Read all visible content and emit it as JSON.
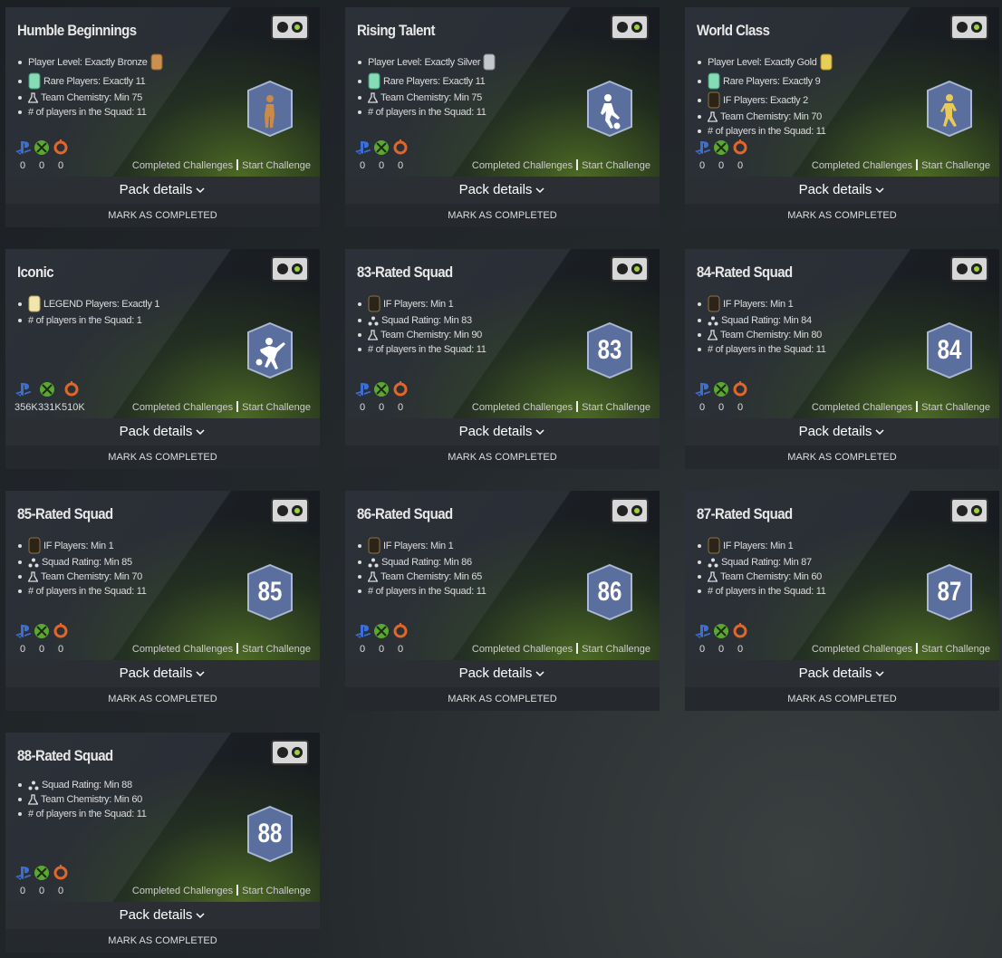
{
  "cards": [
    {
      "title": "Humble Beginnings",
      "requirements": [
        "Player Level: Exactly Bronze",
        "Rare Players: Exactly 11",
        "Team Chemistry: Min 75",
        "# of players in the Squad: 11"
      ],
      "counts": [
        0,
        0,
        0
      ]
    },
    {
      "title": "Rising Talent",
      "requirements": [
        "Player Level: Exactly Silver",
        "Rare Players: Exactly 11",
        "Team Chemistry: Min 75",
        "# of players in the Squad: 11"
      ],
      "counts": [
        0,
        0,
        0
      ]
    },
    {
      "title": "World Class",
      "requirements": [
        "Player Level: Exactly Gold",
        "Rare Players: Exactly 9",
        "IF Players: Exactly 2",
        "Team Chemistry: Min 70",
        "# of players in the Squad: 11"
      ],
      "counts": [
        0,
        0,
        0
      ]
    },
    {
      "title": "Iconic",
      "requirements": [
        "LEGEND Players: Exactly 1",
        "# of players in the Squad: 1"
      ],
      "counts": [
        "356K",
        "331K",
        "510K"
      ]
    },
    {
      "title": "83-Rated Squad",
      "requirements": [
        "IF Players: Min 1",
        "Squad Rating: Min 83",
        "Team Chemistry: Min 90",
        "# of players in the Squad: 11"
      ],
      "badge": 83,
      "counts": [
        0,
        0,
        0
      ]
    },
    {
      "title": "84-Rated Squad",
      "requirements": [
        "IF Players: Min 1",
        "Squad Rating: Min 84",
        "Team Chemistry: Min 80",
        "# of players in the Squad: 11"
      ],
      "badge": 84,
      "counts": [
        0,
        0,
        0
      ]
    },
    {
      "title": "85-Rated Squad",
      "requirements": [
        "IF Players: Min 1",
        "Squad Rating: Min 85",
        "Team Chemistry: Min 70",
        "# of players in the Squad: 11"
      ],
      "badge": 85,
      "counts": [
        0,
        0,
        0
      ]
    },
    {
      "title": "86-Rated Squad",
      "requirements": [
        "IF Players: Min 1",
        "Squad Rating: Min 86",
        "Team Chemistry: Min 65",
        "# of players in the Squad: 11"
      ],
      "badge": 86,
      "counts": [
        0,
        0,
        0
      ]
    },
    {
      "title": "87-Rated Squad",
      "requirements": [
        "IF Players: Min 1",
        "Squad Rating: Min 87",
        "Team Chemistry: Min 60",
        "# of players in the Squad: 11"
      ],
      "badge": 87,
      "counts": [
        0,
        0,
        0
      ]
    },
    {
      "title": "88-Rated Squad",
      "requirements": [
        "Squad Rating: Min 88",
        "Team Chemistry: Min 60",
        "# of players in the Squad: 11"
      ],
      "badge": 88,
      "counts": [
        0,
        0,
        0
      ]
    }
  ],
  "labels": {
    "completed": "Completed Challenges",
    "start": "Start Challenge",
    "pack": "Pack details",
    "mark": "MARK AS COMPLETED"
  }
}
